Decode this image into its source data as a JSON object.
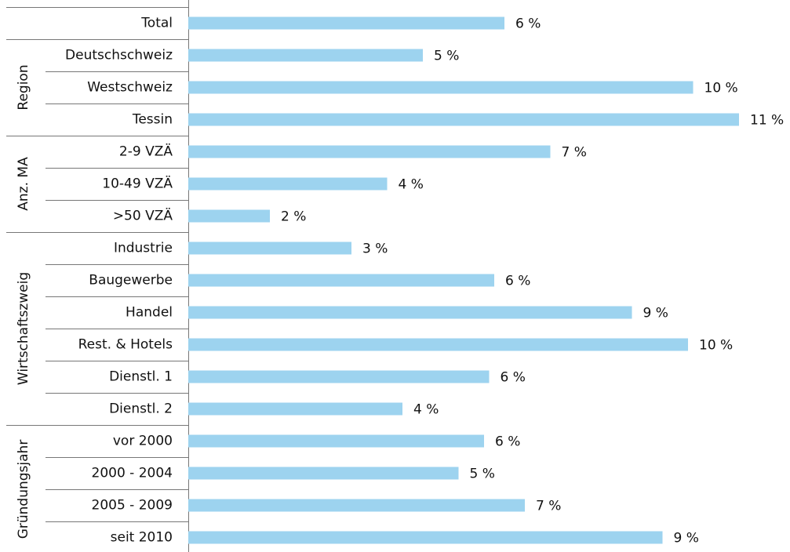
{
  "chart_data": {
    "type": "bar",
    "orientation": "horizontal",
    "categories": [
      "Total",
      "Deutschschweiz",
      "Westschweiz",
      "Tessin",
      "2-9 VZÄ",
      "10-49 VZÄ",
      ">50 VZÄ",
      "Industrie",
      "Baugewerbe",
      "Handel",
      "Rest. & Hotels",
      "Dienstl. 1",
      "Dienstl. 2",
      "vor 2000",
      "2000 - 2004",
      "2005 - 2009",
      "seit 2010"
    ],
    "groups": [
      null,
      "Region",
      "Region",
      "Region",
      "Anz. MA",
      "Anz. MA",
      "Anz. MA",
      "Wirtschaftszweig",
      "Wirtschaftszweig",
      "Wirtschaftszweig",
      "Wirtschaftszweig",
      "Wirtschaftszweig",
      "Wirtschaftszweig",
      "Gründungsjahr",
      "Gründungsjahr",
      "Gründungsjahr",
      "Gründungsjahr"
    ],
    "values": [
      6.2,
      4.6,
      9.9,
      10.8,
      7.1,
      3.9,
      1.6,
      3.2,
      6.0,
      8.7,
      9.8,
      5.9,
      4.2,
      5.8,
      5.3,
      6.6,
      9.3
    ],
    "value_labels": [
      "6 %",
      "5 %",
      "10 %",
      "11 %",
      "7 %",
      "4 %",
      "2 %",
      "3 %",
      "6 %",
      "9 %",
      "10 %",
      "6 %",
      "4 %",
      "6 %",
      "5 %",
      "7 %",
      "9 %"
    ],
    "color": "#9dd3ef",
    "xlim": [
      0,
      11.8
    ]
  }
}
